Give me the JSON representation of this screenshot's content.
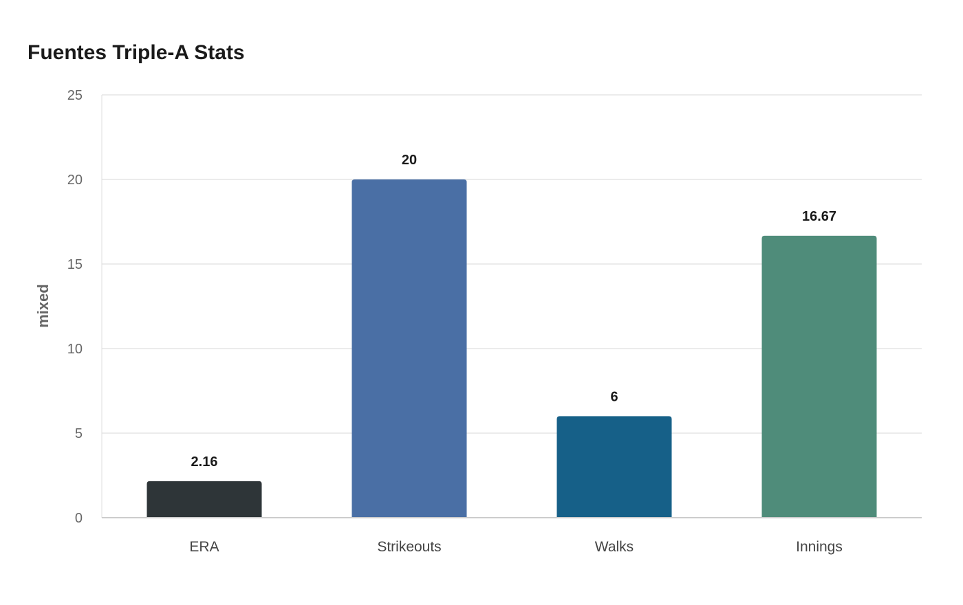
{
  "chart_data": {
    "type": "bar",
    "title": "Fuentes Triple-A Stats",
    "xlabel": "",
    "ylabel": "mixed",
    "categories": [
      "ERA",
      "Strikeouts",
      "Walks",
      "Innings"
    ],
    "values": [
      2.16,
      20,
      6,
      16.67
    ],
    "data_labels": [
      "2.16",
      "20",
      "6",
      "16.67"
    ],
    "colors": [
      "#2e3538",
      "#4a6fa5",
      "#166088",
      "#4f8c7a"
    ],
    "ylim": [
      0,
      25
    ],
    "yticks": [
      0,
      5,
      10,
      15,
      20,
      25
    ],
    "grid": true,
    "legend": "none"
  }
}
